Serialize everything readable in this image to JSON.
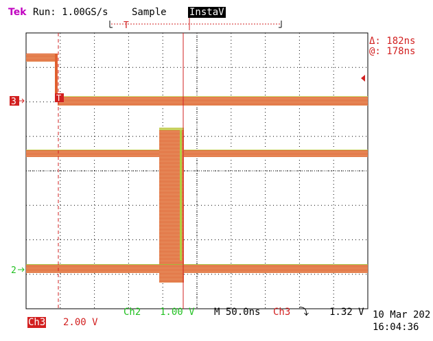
{
  "header": {
    "brand": "Tek",
    "run_status": "Run: 1.00GS/s",
    "acq_mode": "Sample",
    "display_mode": "InstaV"
  },
  "cursor_readout": {
    "delta": "Δ: 182ns",
    "at": "@: 178ns"
  },
  "markers": {
    "ch3_ground": "3",
    "ch2_ground": "2",
    "trigger_T": "T"
  },
  "footer": {
    "ch2_label": "Ch2",
    "ch2_scale": "1.00 V",
    "timebase": "M 50.0ns",
    "trig_source": "Ch3",
    "trig_slope": "⤵",
    "trig_level": "1.32 V",
    "ch3_label": "Ch3",
    "ch3_scale": "2.00 V",
    "date": "10 Mar 202",
    "time": "16:04:36"
  },
  "colors": {
    "brand": "#c000c0",
    "ch3": "#d22020",
    "ch2": "#20c020",
    "trace": "#e07030",
    "grid": "#000000",
    "text": "#000000"
  }
}
